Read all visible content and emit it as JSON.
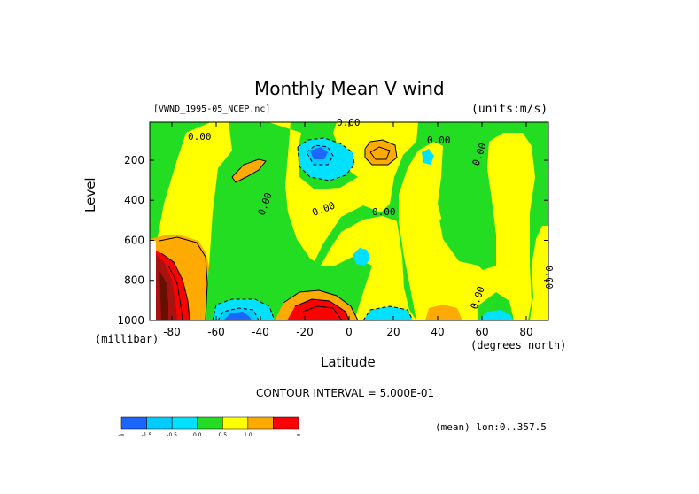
{
  "chart_data": {
    "type": "heatmap",
    "title": "Monthly Mean V wind",
    "dataset_label": "[VWND_1995-05_NCEP.nc]",
    "units_label": "(units:m/s)",
    "xlabel": "Latitude",
    "x_units": "(degrees_north)",
    "ylabel": "Level",
    "y_units": "(millibar)",
    "xlim": [
      -90,
      90
    ],
    "ylim": [
      1000,
      10
    ],
    "y_reversed": true,
    "x_ticks": [
      "-80",
      "-60",
      "-40",
      "-20",
      "0",
      "20",
      "40",
      "60",
      "80"
    ],
    "x_tick_values": [
      -80,
      -60,
      -40,
      -20,
      0,
      20,
      40,
      60,
      80
    ],
    "y_ticks": [
      "200",
      "400",
      "600",
      "800",
      "1000"
    ],
    "y_tick_values": [
      200,
      400,
      600,
      800,
      1000
    ],
    "contour_interval_label": "CONTOUR INTERVAL = 5.000E-01",
    "contour_labels": [
      "0.00",
      "0.00",
      "0.00",
      "0.00",
      "0.00",
      "0.00",
      "0.00",
      "0.00",
      "0.00"
    ],
    "stats_label": "(mean) lon:0..357.5",
    "colorbar": {
      "bins": [
        {
          "range": "< -1.5",
          "color": "#1a66ff"
        },
        {
          "range": "-1.5 to -1.0",
          "color": "#00ccff"
        },
        {
          "range": "-1.0 to -0.5",
          "color": "#00e0ff"
        },
        {
          "range": "-0.5 to 0.0",
          "color": "#22dd22"
        },
        {
          "range": "0.0 to 0.5",
          "color": "#ffff00"
        },
        {
          "range": "0.5 to 1.0",
          "color": "#ffaa00"
        },
        {
          "range": "> 1.0",
          "color": "#ff0000"
        }
      ],
      "tick_labels": [
        "-∞",
        "-1.5",
        "-0.5",
        "0.0",
        "0.5",
        "1.0",
        "∞"
      ]
    },
    "features": [
      {
        "name": "negative-center",
        "lat": -18,
        "level": 170,
        "value": -1.5
      },
      {
        "name": "positive-center",
        "lat": 13,
        "level": 150,
        "value": 1.0
      },
      {
        "name": "positive-center",
        "lat": -15,
        "level": 970,
        "value": 2.0
      },
      {
        "name": "negative-center",
        "lat": -58,
        "level": 980,
        "value": -1.5
      },
      {
        "name": "negative-center",
        "lat": 15,
        "level": 980,
        "value": -1.0
      },
      {
        "name": "negative-center",
        "lat": 7,
        "level": 650,
        "value": -1.0
      },
      {
        "name": "positive-center",
        "lat": -85,
        "level": 850,
        "value": 3.0
      }
    ]
  }
}
